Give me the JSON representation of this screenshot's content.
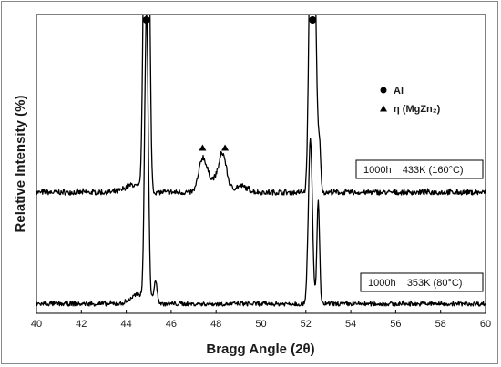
{
  "chart_data": {
    "type": "line",
    "title": "",
    "xlabel": "Bragg Angle (2θ)",
    "ylabel": "Relative Intensity (%)",
    "xlim": [
      40,
      60
    ],
    "xticks": [
      "40",
      "42",
      "44",
      "46",
      "48",
      "50",
      "52",
      "54",
      "56",
      "58",
      "60"
    ],
    "yticks_shown": false,
    "grid": false,
    "legend": {
      "placement": "top-right",
      "entries": [
        {
          "marker": "circle",
          "label": "Al"
        },
        {
          "marker": "triangle",
          "label": "η (MgZn₂)"
        }
      ]
    },
    "series": [
      {
        "name": "1000h    433K (160°C)",
        "peaks": [
          {
            "x": 44.3,
            "height": 0.18,
            "width": 0.35
          },
          {
            "x": 44.8,
            "height": 6.0,
            "width": 0.07
          },
          {
            "x": 45.0,
            "height": 6.0,
            "width": 0.07
          },
          {
            "x": 47.4,
            "height": 0.75,
            "width": 0.17
          },
          {
            "x": 48.3,
            "height": 0.85,
            "width": 0.17
          },
          {
            "x": 47.85,
            "height": 0.3,
            "width": 0.3
          },
          {
            "x": 49.1,
            "height": 0.15,
            "width": 0.3
          },
          {
            "x": 52.2,
            "height": 6.0,
            "width": 0.08
          },
          {
            "x": 52.4,
            "height": 5.0,
            "width": 0.08
          },
          {
            "x": 52.6,
            "height": 1.2,
            "width": 0.06
          }
        ]
      },
      {
        "name": "1000h    353K (80°C)",
        "peaks": [
          {
            "x": 44.5,
            "height": 0.25,
            "width": 0.3
          },
          {
            "x": 44.9,
            "height": 8.0,
            "width": 0.08
          },
          {
            "x": 45.3,
            "height": 0.6,
            "width": 0.08
          },
          {
            "x": 52.2,
            "height": 4.5,
            "width": 0.09
          },
          {
            "x": 52.55,
            "height": 2.8,
            "width": 0.06
          }
        ]
      }
    ],
    "annotations": [
      {
        "marker": "circle",
        "phase": "Al",
        "x": 44.9
      },
      {
        "marker": "circle",
        "phase": "Al",
        "x": 52.3
      },
      {
        "marker": "triangle",
        "phase": "η (MgZn₂)",
        "x": 47.4
      },
      {
        "marker": "triangle",
        "phase": "η (MgZn₂)",
        "x": 48.4
      }
    ]
  }
}
